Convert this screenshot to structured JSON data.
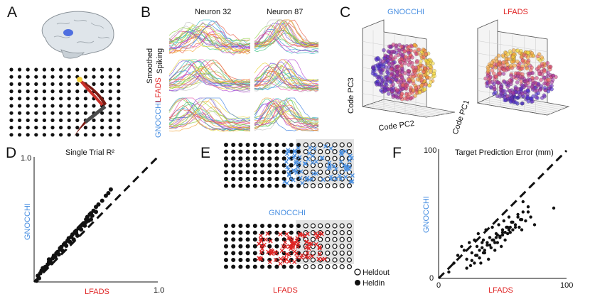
{
  "colors": {
    "blue": "#4a90e2",
    "red": "#e02424",
    "black": "#111111",
    "gray": "#dcdcdc"
  },
  "panels": {
    "A": {
      "letter": "A"
    },
    "B": {
      "letter": "B",
      "columns": [
        "Neuron 32",
        "Neuron 87"
      ],
      "rows": [
        "Smoothed",
        "Spiking",
        "LFADS",
        "GNOCCHI"
      ]
    },
    "C": {
      "letter": "C",
      "titles": [
        "GNOCCHI",
        "LFADS"
      ],
      "axes": [
        "Code PC3",
        "Code PC2",
        "Code PC1"
      ]
    },
    "D": {
      "letter": "D",
      "title": "Single Trial R²",
      "xlabel": "LFADS",
      "ylabel": "GNOCCHI",
      "xtick": "1.0",
      "ytick": "1.0"
    },
    "E": {
      "letter": "E",
      "top_label": "GNOCCHI",
      "bottom_label": "LFADS",
      "legend": [
        "Heldout",
        "Heldin"
      ]
    },
    "F": {
      "letter": "F",
      "title": "Target Prediction Error (mm)",
      "xlabel": "LFADS",
      "ylabel": "GNOCCHI",
      "xticks": [
        "0",
        "100"
      ],
      "ytick": "100",
      "ytick0": "0"
    }
  },
  "chart_data": [
    {
      "type": "scatter",
      "title": "Single Trial R²",
      "xlabel": "LFADS",
      "ylabel": "GNOCCHI",
      "xlim": [
        0,
        1
      ],
      "ylim": [
        0,
        1
      ],
      "x": [
        0.02,
        0.04,
        0.05,
        0.06,
        0.08,
        0.09,
        0.1,
        0.11,
        0.12,
        0.13,
        0.14,
        0.15,
        0.16,
        0.17,
        0.18,
        0.19,
        0.2,
        0.21,
        0.22,
        0.23,
        0.24,
        0.25,
        0.26,
        0.27,
        0.28,
        0.29,
        0.3,
        0.31,
        0.32,
        0.33,
        0.34,
        0.35,
        0.36,
        0.37,
        0.38,
        0.39,
        0.4,
        0.41,
        0.42,
        0.43,
        0.44,
        0.45,
        0.46,
        0.47,
        0.48,
        0.5,
        0.52,
        0.55,
        0.58,
        0.6,
        0.62,
        0.03,
        0.07,
        0.12,
        0.16,
        0.21,
        0.25,
        0.3,
        0.34,
        0.38,
        0.42,
        0.46,
        0.5
      ],
      "y": [
        0.01,
        0.03,
        0.07,
        0.09,
        0.1,
        0.12,
        0.12,
        0.14,
        0.16,
        0.17,
        0.15,
        0.19,
        0.21,
        0.2,
        0.23,
        0.24,
        0.22,
        0.27,
        0.28,
        0.25,
        0.3,
        0.31,
        0.29,
        0.33,
        0.35,
        0.32,
        0.36,
        0.38,
        0.34,
        0.4,
        0.41,
        0.37,
        0.43,
        0.44,
        0.42,
        0.46,
        0.47,
        0.45,
        0.5,
        0.52,
        0.49,
        0.54,
        0.55,
        0.53,
        0.57,
        0.6,
        0.62,
        0.65,
        0.69,
        0.71,
        0.74,
        0.05,
        0.11,
        0.18,
        0.21,
        0.26,
        0.3,
        0.36,
        0.39,
        0.45,
        0.48,
        0.5,
        0.56
      ]
    },
    {
      "type": "scatter",
      "title": "Target Prediction Error (mm)",
      "xlabel": "LFADS",
      "ylabel": "GNOCCHI",
      "xlim": [
        0,
        100
      ],
      "ylim": [
        0,
        100
      ],
      "x": [
        8,
        12,
        15,
        18,
        20,
        22,
        24,
        25,
        26,
        28,
        29,
        30,
        31,
        32,
        33,
        34,
        35,
        36,
        37,
        38,
        39,
        40,
        41,
        42,
        43,
        44,
        45,
        46,
        47,
        48,
        49,
        50,
        51,
        52,
        53,
        54,
        55,
        56,
        57,
        58,
        60,
        62,
        63,
        64,
        65,
        66,
        68,
        70,
        72,
        75,
        90,
        22,
        26,
        30,
        34,
        38,
        42,
        46,
        50,
        54,
        58,
        62,
        66,
        70,
        35,
        40,
        45,
        50,
        55,
        60,
        65,
        28,
        32,
        36,
        44,
        48,
        52,
        56
      ],
      "y": [
        5,
        12,
        18,
        25,
        22,
        15,
        28,
        10,
        20,
        30,
        18,
        25,
        35,
        22,
        12,
        28,
        30,
        20,
        38,
        26,
        15,
        32,
        24,
        40,
        30,
        22,
        35,
        28,
        42,
        33,
        25,
        38,
        45,
        30,
        40,
        35,
        48,
        36,
        44,
        38,
        42,
        50,
        40,
        46,
        38,
        60,
        45,
        52,
        48,
        42,
        55,
        8,
        14,
        18,
        24,
        28,
        30,
        34,
        36,
        40,
        44,
        48,
        52,
        56,
        20,
        26,
        32,
        34,
        38,
        40,
        46,
        12,
        16,
        22,
        28,
        32,
        36,
        40
      ]
    }
  ]
}
